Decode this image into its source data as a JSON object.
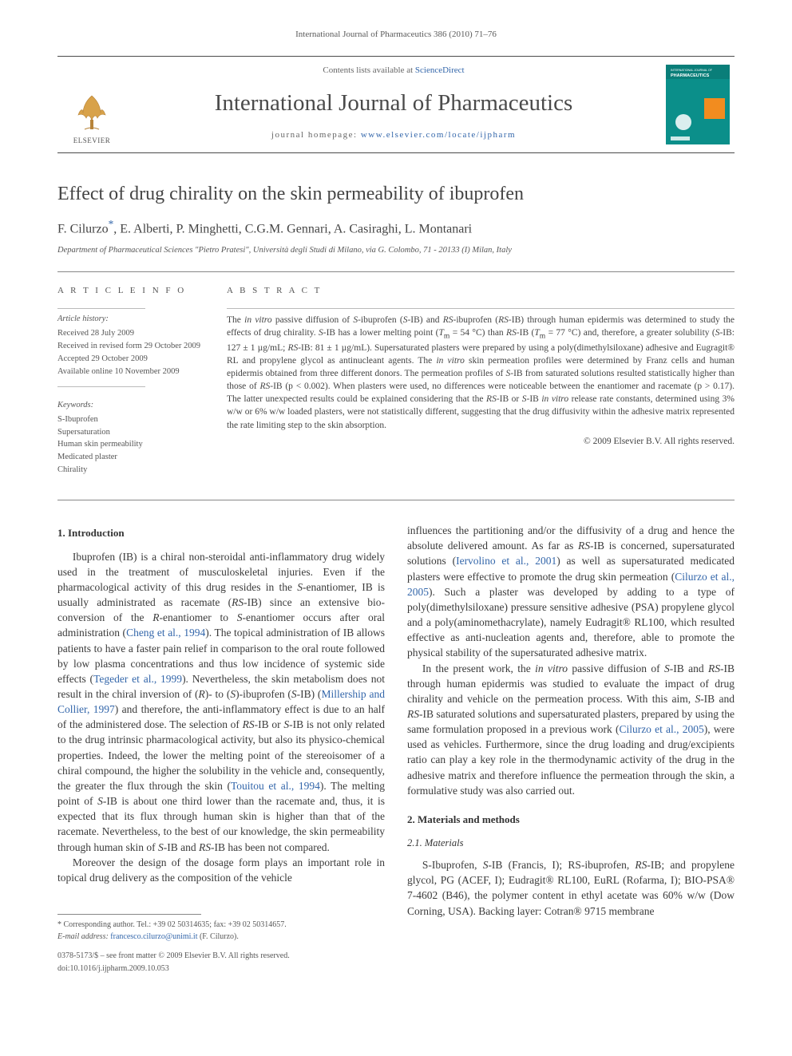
{
  "running_head": "International Journal of Pharmaceutics 386 (2010) 71–76",
  "masthead": {
    "contents_prefix": "Contents lists available at ",
    "contents_link": "ScienceDirect",
    "journal_title": "International Journal of Pharmaceutics",
    "homepage_prefix": "journal homepage: ",
    "homepage_url": "www.elsevier.com/locate/ijpharm",
    "elsevier_label": "ELSEVIER",
    "cover": {
      "bg": "#0b8f8a",
      "accent": "#f28c1f",
      "text1": "INTERNATIONAL JOURNAL OF",
      "text2": "PHARMACEUTICS"
    }
  },
  "article": {
    "title": "Effect of drug chirality on the skin permeability of ibuprofen",
    "authors_html": "F. Cilurzo<sup class='corr'>*</sup>, E. Alberti, P. Minghetti, C.G.M. Gennari, A. Casiraghi, L. Montanari",
    "affiliation": "Department of Pharmaceutical Sciences \"Pietro Pratesi\", Università degli Studi di Milano, via G. Colombo, 71 - 20133 (I) Milan, Italy"
  },
  "article_info": {
    "heading": "A R T I C L E   I N F O",
    "history_label": "Article history:",
    "history": [
      "Received 28 July 2009",
      "Received in revised form 29 October 2009",
      "Accepted 29 October 2009",
      "Available online 10 November 2009"
    ],
    "keywords_label": "Keywords:",
    "keywords": [
      "S-Ibuprofen",
      "Supersaturation",
      "Human skin permeability",
      "Medicated plaster",
      "Chirality"
    ]
  },
  "abstract": {
    "heading": "A B S T R A C T",
    "text": "The in vitro passive diffusion of S-ibuprofen (S-IB) and RS-ibuprofen (RS-IB) through human epidermis was determined to study the effects of drug chirality. S-IB has a lower melting point (Tm = 54 °C) than RS-IB (Tm = 77 °C) and, therefore, a greater solubility (S-IB: 127 ± 1 µg/mL; RS-IB: 81 ± 1 µg/mL). Supersaturated plasters were prepared by using a poly(dimethylsiloxane) adhesive and Eugragit® RL and propylene glycol as antinucleant agents. The in vitro skin permeation profiles were determined by Franz cells and human epidermis obtained from three different donors. The permeation profiles of S-IB from saturated solutions resulted statistically higher than those of RS-IB (p < 0.002). When plasters were used, no differences were noticeable between the enantiomer and racemate (p > 0.17). The latter unexpected results could be explained considering that the RS-IB or S-IB in vitro release rate constants, determined using 3% w/w or 6% w/w loaded plasters, were not statistically different, suggesting that the drug diffusivity within the adhesive matrix represented the rate limiting step to the skin absorption.",
    "copyright": "© 2009 Elsevier B.V. All rights reserved."
  },
  "sections": {
    "s1_head": "1.  Introduction",
    "s1_p1": "Ibuprofen (IB) is a chiral non-steroidal anti-inflammatory drug widely used in the treatment of musculoskeletal injuries. Even if the pharmacological activity of this drug resides in the S-enantiomer, IB is usually administrated as racemate (RS-IB) since an extensive bio-conversion of the R-enantiomer to S-enantiomer occurs after oral administration (Cheng et al., 1994). The topical administration of IB allows patients to have a faster pain relief in comparison to the oral route followed by low plasma concentrations and thus low incidence of systemic side effects (Tegeder et al., 1999). Nevertheless, the skin metabolism does not result in the chiral inversion of (R)- to (S)-ibuprofen (S-IB) (Millership and Collier, 1997) and therefore, the anti-inflammatory effect is due to an half of the administered dose. The selection of RS-IB or S-IB is not only related to the drug intrinsic pharmacological activity, but also its physico-chemical properties. Indeed, the lower the melting point of the stereoisomer of a chiral compound, the higher the solubility in the vehicle and, consequently, the greater the flux through the skin (Touitou et al., 1994). The melting point of S-IB is about one third lower than the racemate and, thus, it is expected that its flux through human skin is higher than that of the racemate. Nevertheless, to the best of our knowledge, the skin permeability through human skin of S-IB and RS-IB has been not compared.",
    "s1_p2": "Moreover the design of the dosage form plays an important role in topical drug delivery as the composition of the vehicle",
    "s1_p3": "influences the partitioning and/or the diffusivity of a drug and hence the absolute delivered amount. As far as RS-IB is concerned, supersaturated solutions (Iervolino et al., 2001) as well as supersaturated medicated plasters were effective to promote the drug skin permeation (Cilurzo et al., 2005). Such a plaster was developed by adding to a type of poly(dimethylsiloxane) pressure sensitive adhesive (PSA) propylene glycol and a poly(aminomethacrylate), namely Eudragit® RL100, which resulted effective as anti-nucleation agents and, therefore, able to promote the physical stability of the supersaturated adhesive matrix.",
    "s1_p4": "In the present work, the in vitro passive diffusion of S-IB and RS-IB through human epidermis was studied to evaluate the impact of drug chirality and vehicle on the permeation process. With this aim, S-IB and RS-IB saturated solutions and supersaturated plasters, prepared by using the same formulation proposed in a previous work (Cilurzo et al., 2005), were used as vehicles. Furthermore, since the drug loading and drug/excipients ratio can play a key role in the thermodynamic activity of the drug in the adhesive matrix and therefore influence the permeation through the skin, a formulative study was also carried out.",
    "s2_head": "2.  Materials and methods",
    "s2_1_head": "2.1.  Materials",
    "s2_1_p1": "S-Ibuprofen, S-IB (Francis, I); RS-ibuprofen, RS-IB; and propylene glycol, PG (ACEF, I); Eudragit® RL100, EuRL (Rofarma, I); BIO-PSA® 7-4602 (B46), the polymer content in ethyl acetate was 60% w/w (Dow Corning, USA). Backing layer: Cotran® 9715 membrane"
  },
  "footer": {
    "corr_label": "* Corresponding author. Tel.: +39 02 50314635; fax: +39 02 50314657.",
    "email_label": "E-mail address:",
    "email": "francesco.cilurzo@unimi.it",
    "email_who": "(F. Cilurzo).",
    "issn_line": "0378-5173/$ – see front matter © 2009 Elsevier B.V. All rights reserved.",
    "doi_line": "doi:10.1016/j.ijpharm.2009.10.053"
  },
  "colors": {
    "link": "#3366aa",
    "text": "#3a3a3a",
    "rule": "#888888"
  }
}
